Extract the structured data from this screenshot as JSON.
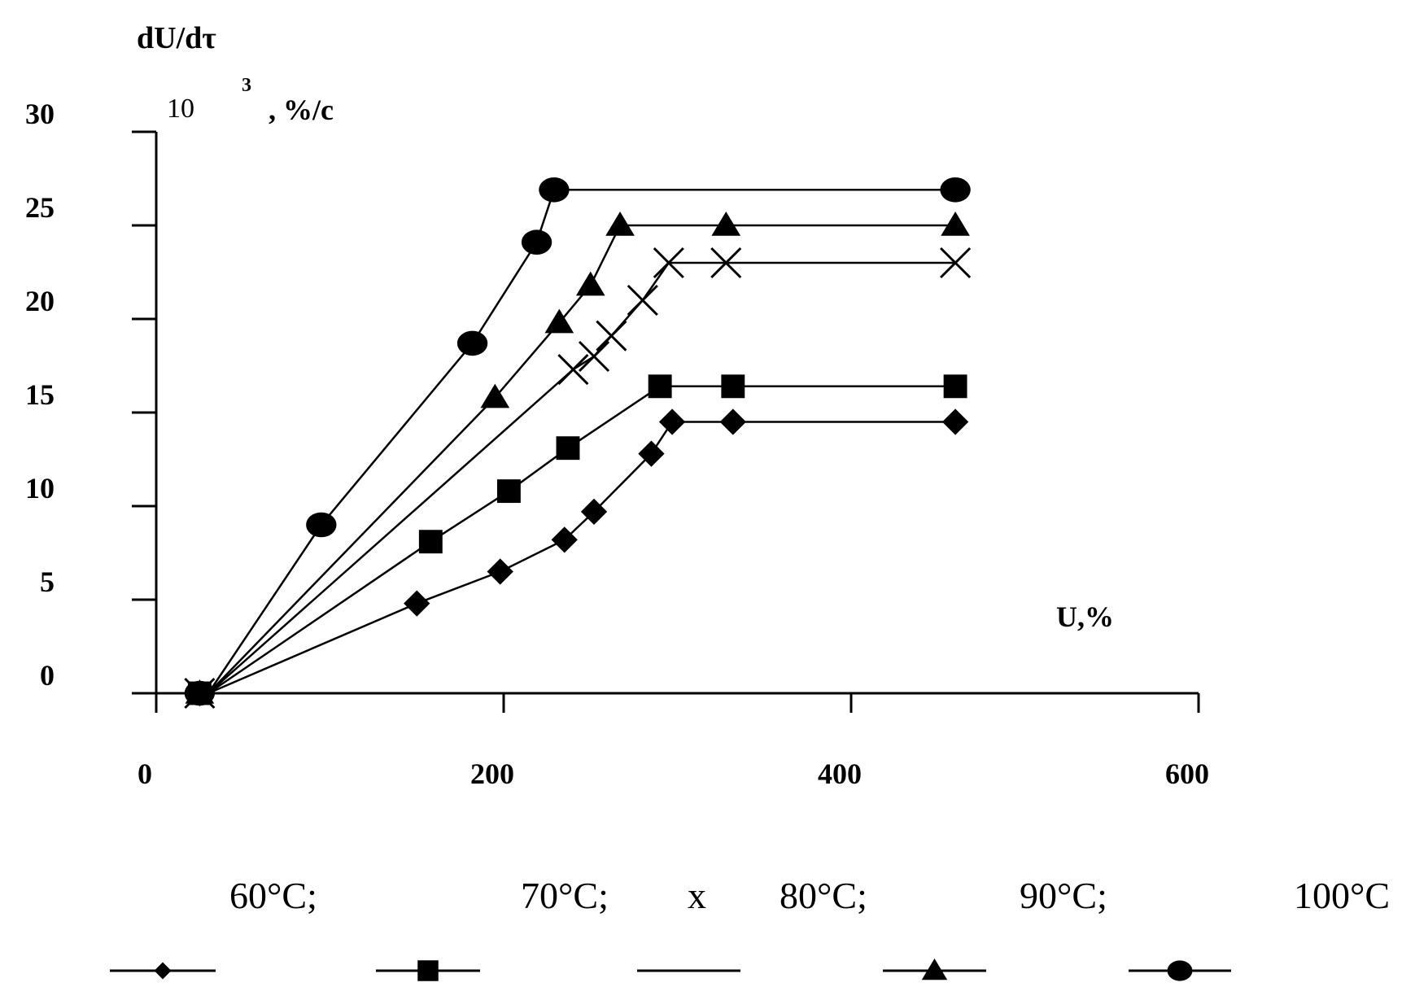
{
  "chart_data": {
    "type": "line",
    "ylabel": "dU/dτ",
    "ylabel_multiplier": "10",
    "ylabel_exponent": "3",
    "ylabel_unit": ", %/c",
    "xlabel": "U,%",
    "xlim": [
      0,
      600
    ],
    "ylim": [
      0,
      30
    ],
    "x_ticks": [
      0,
      200,
      400,
      600
    ],
    "y_ticks": [
      0,
      5,
      10,
      15,
      20,
      25,
      30
    ],
    "grid": false,
    "legend_position": "bottom",
    "series": [
      {
        "name": "60°C;",
        "marker": "diamond",
        "x": [
          25,
          30,
          150,
          198,
          235,
          252,
          285,
          297,
          332,
          460
        ],
        "y": [
          0,
          0,
          4.8,
          6.5,
          8.2,
          9.7,
          12.8,
          14.5,
          14.5,
          14.5
        ]
      },
      {
        "name": "70°C;",
        "marker": "square",
        "x": [
          25,
          30,
          158,
          203,
          237,
          290,
          332,
          460
        ],
        "y": [
          0,
          0,
          8.1,
          10.8,
          13.1,
          16.4,
          16.4,
          16.4
        ]
      },
      {
        "name": "80°C;",
        "legend_prefix": "x",
        "marker": "x",
        "x": [
          25,
          30,
          240,
          252,
          262,
          280,
          295,
          328,
          460
        ],
        "y": [
          0,
          0,
          17.3,
          18.0,
          19.1,
          21.0,
          23.0,
          23.0,
          23.0
        ]
      },
      {
        "name": "90°C;",
        "marker": "triangle",
        "x": [
          25,
          30,
          195,
          232,
          250,
          267,
          328,
          460
        ],
        "y": [
          0,
          0,
          15.8,
          19.8,
          21.8,
          25.0,
          25.0,
          25.0
        ]
      },
      {
        "name": "100°C",
        "marker": "circle",
        "x": [
          25,
          30,
          95,
          182,
          219,
          229,
          460
        ],
        "y": [
          0,
          0,
          9.0,
          18.7,
          24.1,
          26.9,
          26.9
        ]
      }
    ]
  }
}
